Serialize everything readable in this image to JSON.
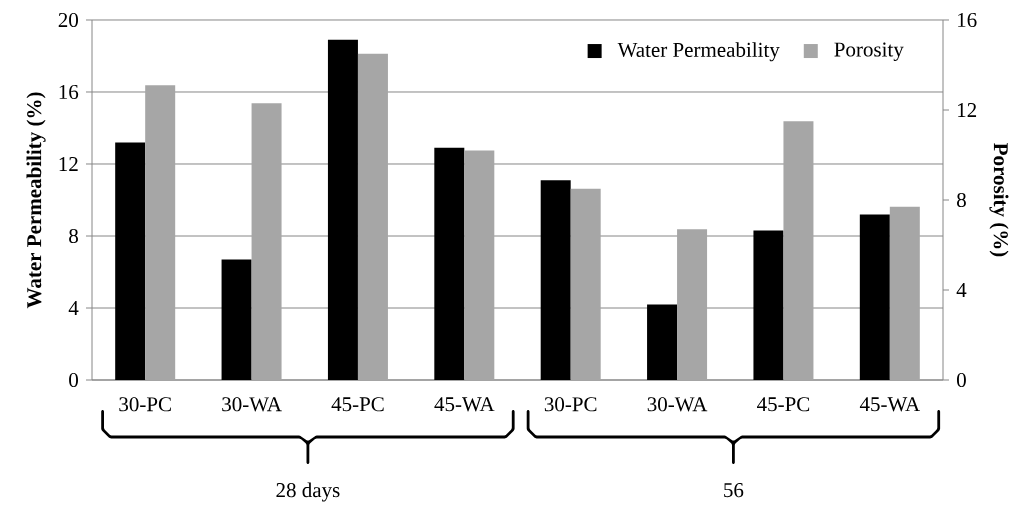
{
  "chart_data": {
    "type": "bar",
    "ylabel": "Water Permeability (%)",
    "y2label": "Porosity (%)",
    "categories": [
      "30-PC",
      "30-WA",
      "45-PC",
      "45-WA",
      "30-PC",
      "30-WA",
      "45-PC",
      "45-WA"
    ],
    "series": [
      {
        "name": "Water Permeability",
        "color": "#000000",
        "values": [
          13.2,
          6.7,
          18.9,
          12.9,
          11.1,
          4.2,
          8.3,
          9.2
        ]
      },
      {
        "name": "Porosity",
        "color": "#a6a6a6",
        "axis": "y2",
        "values": [
          13.1,
          12.3,
          14.5,
          10.2,
          8.5,
          6.7,
          11.5,
          7.7
        ]
      }
    ],
    "ylim": [
      0,
      20
    ],
    "yticks": [
      0,
      4,
      8,
      12,
      16,
      20
    ],
    "y2lim": [
      0,
      16
    ],
    "y2ticks": [
      0,
      4,
      8,
      12,
      16
    ],
    "grid": "y",
    "legend": "top right",
    "annotations": [
      "28 days",
      "56"
    ]
  }
}
